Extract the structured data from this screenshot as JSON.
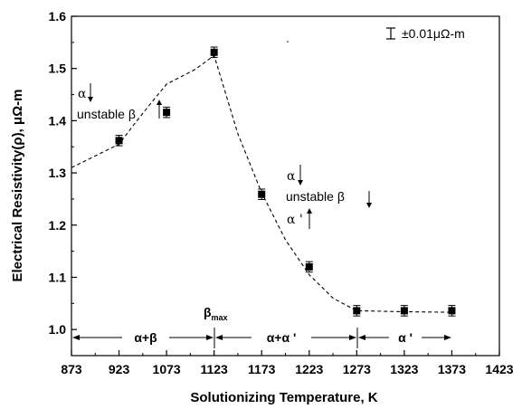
{
  "chart_data": {
    "type": "scatter",
    "xlabel": "Solutionizing Temperature, K",
    "ylabel": "Electrical Resistivity(ρ), μΩ-m",
    "xlim": [
      873,
      1423
    ],
    "ylim": [
      0.95,
      1.6
    ],
    "x_ticks": [
      873,
      923,
      1073,
      1123,
      1173,
      1223,
      1273,
      1323,
      1373,
      1423
    ],
    "y_ticks": [
      1.0,
      1.1,
      1.2,
      1.3,
      1.4,
      1.5,
      1.6
    ],
    "grid": false,
    "legend": {
      "position": "top-right",
      "text": "±0.01μΩ-m"
    },
    "series": [
      {
        "x": [
          923,
          1073,
          1123,
          1173,
          1223,
          1273,
          1323,
          1373
        ],
        "y": [
          1.362,
          1.416,
          1.531,
          1.259,
          1.12,
          1.036,
          1.036,
          1.036
        ],
        "error": [
          0.01,
          0.01,
          0.01,
          0.01,
          0.01,
          0.01,
          0.01,
          0.01
        ]
      }
    ],
    "fit_curve": {
      "x": [
        873,
        923,
        973,
        1023,
        1073,
        1103,
        1123,
        1148,
        1173,
        1198,
        1223,
        1248,
        1273,
        1323,
        1373
      ],
      "y": [
        1.31,
        1.355,
        1.395,
        1.433,
        1.47,
        1.498,
        1.525,
        1.375,
        1.262,
        1.172,
        1.105,
        1.06,
        1.036,
        1.034,
        1.033
      ]
    },
    "annotations": {
      "alpha": "α",
      "unstable_beta": "unstable β",
      "alpha_prime": "α '",
      "beta_max": "β",
      "beta_max_sub": "max",
      "region_ab": "α+β",
      "region_aa": "α+α '",
      "region_ap": "α '"
    }
  }
}
